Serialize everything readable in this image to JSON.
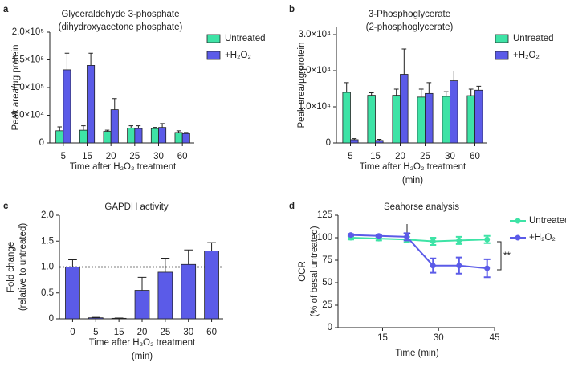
{
  "chart_data": [
    {
      "type": "bar",
      "panel": "a",
      "title": [
        "Glyceraldehyde 3-phosphate",
        "(dihydroxyacetone phosphate)"
      ],
      "ylabel": [
        "Peak area/µg protein"
      ],
      "xlabel": [
        "Time after H₂O₂ treatment"
      ],
      "categories": [
        "5",
        "15",
        "20",
        "25",
        "30",
        "60"
      ],
      "series": [
        {
          "name": "Untreated",
          "color": "#3ee3a6",
          "values": [
            22000,
            23000,
            21000,
            27000,
            26000,
            19000
          ],
          "errors": [
            7000,
            8000,
            2000,
            4000,
            2000,
            3000
          ]
        },
        {
          "name": "+H₂O₂",
          "color": "#5b5be8",
          "values": [
            132000,
            140000,
            60000,
            26000,
            28000,
            17000
          ],
          "errors": [
            30000,
            22000,
            20000,
            5000,
            7000,
            2000
          ]
        }
      ],
      "ylim": [
        0,
        200000
      ],
      "yticks": [
        0,
        {
          "value": 50000,
          "label": "5.0×10⁴"
        },
        {
          "value": 100000,
          "label": "1.0×10⁵"
        },
        {
          "value": 150000,
          "label": "1.5×10⁵"
        },
        {
          "value": 200000,
          "label": "2.0×10⁵"
        }
      ]
    },
    {
      "type": "bar",
      "panel": "b",
      "title": [
        "3-Phosphoglycerate",
        "(2-phosphoglycerate)"
      ],
      "ylabel": [
        "Peak area/µg protein"
      ],
      "xlabel": [
        "Time after H₂O₂ treatment",
        "(min)"
      ],
      "categories": [
        "5",
        "15",
        "20",
        "25",
        "30",
        "60"
      ],
      "series": [
        {
          "name": "Untreated",
          "color": "#3ee3a6",
          "values": [
            14000,
            13200,
            13200,
            12700,
            12900,
            13100
          ],
          "errors": [
            2700,
            700,
            1700,
            2200,
            1300,
            1800
          ]
        },
        {
          "name": "+H₂O₂",
          "color": "#5b5be8",
          "values": [
            900,
            700,
            19000,
            13700,
            17200,
            14600
          ],
          "errors": [
            300,
            300,
            7000,
            3000,
            2700,
            1100
          ]
        }
      ],
      "ylim": [
        0,
        32000
      ],
      "yticks": [
        0,
        {
          "value": 10000,
          "label": "1.0×10⁴"
        },
        {
          "value": 20000,
          "label": "2.0×10⁴"
        },
        {
          "value": 30000,
          "label": "3.0×10⁴"
        }
      ]
    },
    {
      "type": "bar",
      "panel": "c",
      "title": [
        "GAPDH activity"
      ],
      "ylabel": [
        "Fold change",
        "(relative to untreated)"
      ],
      "xlabel": [
        "Time after H₂O₂ treatment",
        "(min)"
      ],
      "categories": [
        "0",
        "5",
        "15",
        "20",
        "25",
        "30",
        "60"
      ],
      "series": [
        {
          "color": "#5b5be8",
          "values": [
            1.0,
            0.02,
            0.01,
            0.55,
            0.9,
            1.05,
            1.31
          ],
          "errors": [
            0.14,
            0.01,
            0.005,
            0.25,
            0.27,
            0.28,
            0.16
          ]
        }
      ],
      "ylim": [
        0,
        2
      ],
      "refline": 1,
      "yticks": [
        0,
        0.5,
        {
          "value": 1,
          "label": "1.0"
        },
        1.5,
        {
          "value": 2,
          "label": "2.0"
        }
      ]
    },
    {
      "type": "line",
      "panel": "d",
      "title": [
        "Seahorse analysis"
      ],
      "ylabel": [
        "OCR",
        "(% of basal untreated)"
      ],
      "xlabel": [
        "Time (min)"
      ],
      "x": [
        6.5,
        14,
        21.5,
        28.5,
        35.5,
        43
      ],
      "series": [
        {
          "name": "Untreated",
          "color": "#3ee3a6",
          "values": [
            100,
            99,
            98,
            96,
            97,
            98
          ],
          "errors": [
            2,
            2,
            3,
            4,
            4,
            4
          ]
        },
        {
          "name": "+H₂O₂",
          "color": "#5b5be8",
          "values": [
            103,
            102,
            101,
            69,
            69,
            66
          ],
          "errors": [
            1,
            1,
            4,
            8,
            9,
            10
          ]
        }
      ],
      "annotations": [
        "**"
      ],
      "xlim": [
        3.5,
        45
      ],
      "xticks": [
        15,
        30,
        45
      ],
      "ylim": [
        0,
        125
      ],
      "yticks": [
        0,
        25,
        50,
        75,
        100,
        125
      ]
    }
  ]
}
